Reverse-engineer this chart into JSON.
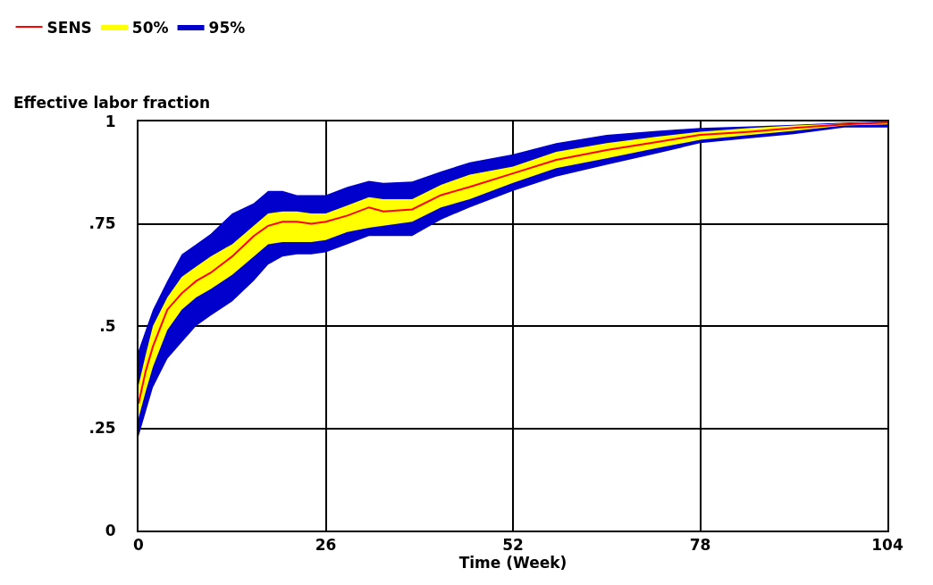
{
  "chart_data": {
    "type": "line",
    "ylabel": "Effective labor fraction",
    "xlabel": "Time (Week)",
    "x": [
      0,
      1,
      2,
      4,
      6,
      8,
      10,
      13,
      16,
      18,
      20,
      22,
      24,
      26,
      29,
      32,
      34,
      38,
      42,
      46,
      52,
      58,
      65,
      72,
      78,
      85,
      91,
      98,
      104
    ],
    "series": [
      {
        "name": "SENS",
        "color": "#ff0000",
        "values": [
          0.31,
          0.39,
          0.45,
          0.54,
          0.58,
          0.61,
          0.63,
          0.67,
          0.72,
          0.745,
          0.755,
          0.755,
          0.75,
          0.755,
          0.77,
          0.79,
          0.78,
          0.785,
          0.82,
          0.84,
          0.873,
          0.906,
          0.93,
          0.95,
          0.967,
          0.975,
          0.984,
          0.993,
          0.997
        ]
      },
      {
        "name": "50%",
        "color": "#ffff00",
        "values": [
          null,
          null,
          null,
          null,
          null,
          null,
          null,
          null,
          null,
          null,
          null,
          null,
          null,
          null,
          null,
          null,
          null,
          null,
          null,
          null,
          null,
          null,
          null,
          null,
          null,
          null,
          null,
          null,
          null
        ],
        "lower": [
          0.275,
          0.34,
          0.4,
          0.49,
          0.54,
          0.57,
          0.59,
          0.625,
          0.67,
          0.7,
          0.705,
          0.705,
          0.705,
          0.71,
          0.73,
          0.74,
          0.745,
          0.755,
          0.79,
          0.81,
          0.85,
          0.886,
          0.91,
          0.935,
          0.955,
          0.967,
          0.977,
          0.99,
          0.993
        ],
        "upper": [
          0.355,
          0.43,
          0.5,
          0.57,
          0.62,
          0.645,
          0.67,
          0.7,
          0.745,
          0.775,
          0.78,
          0.78,
          0.775,
          0.775,
          0.795,
          0.815,
          0.81,
          0.81,
          0.845,
          0.87,
          0.89,
          0.926,
          0.947,
          0.963,
          0.975,
          0.984,
          0.99,
          0.995,
          0.999
        ]
      },
      {
        "name": "95%",
        "color": "#0000cc",
        "values": [
          null,
          null,
          null,
          null,
          null,
          null,
          null,
          null,
          null,
          null,
          null,
          null,
          null,
          null,
          null,
          null,
          null,
          null,
          null,
          null,
          null,
          null,
          null,
          null,
          null,
          null,
          null,
          null,
          null
        ],
        "lower": [
          0.23,
          0.29,
          0.35,
          0.42,
          0.46,
          0.5,
          0.525,
          0.56,
          0.61,
          0.65,
          0.67,
          0.675,
          0.675,
          0.68,
          0.7,
          0.72,
          0.72,
          0.72,
          0.76,
          0.79,
          0.83,
          0.865,
          0.894,
          0.922,
          0.947,
          0.959,
          0.969,
          0.985,
          0.985
        ],
        "upper": [
          0.44,
          0.49,
          0.54,
          0.61,
          0.675,
          0.7,
          0.725,
          0.775,
          0.8,
          0.83,
          0.83,
          0.82,
          0.82,
          0.82,
          0.84,
          0.855,
          0.85,
          0.853,
          0.878,
          0.9,
          0.92,
          0.947,
          0.967,
          0.977,
          0.984,
          0.988,
          0.992,
          0.997,
          1.0
        ]
      }
    ],
    "xlim": [
      0,
      104
    ],
    "xticks": [
      0,
      26,
      52,
      78,
      104
    ],
    "ylim": [
      0,
      1
    ],
    "yticks": [
      0,
      {
        "value": 0.25,
        "label": ".25"
      },
      {
        "value": 0.5,
        "label": ".5"
      },
      {
        "value": 0.75,
        "label": ".75"
      },
      1
    ],
    "grid": true,
    "legend": "top left"
  }
}
